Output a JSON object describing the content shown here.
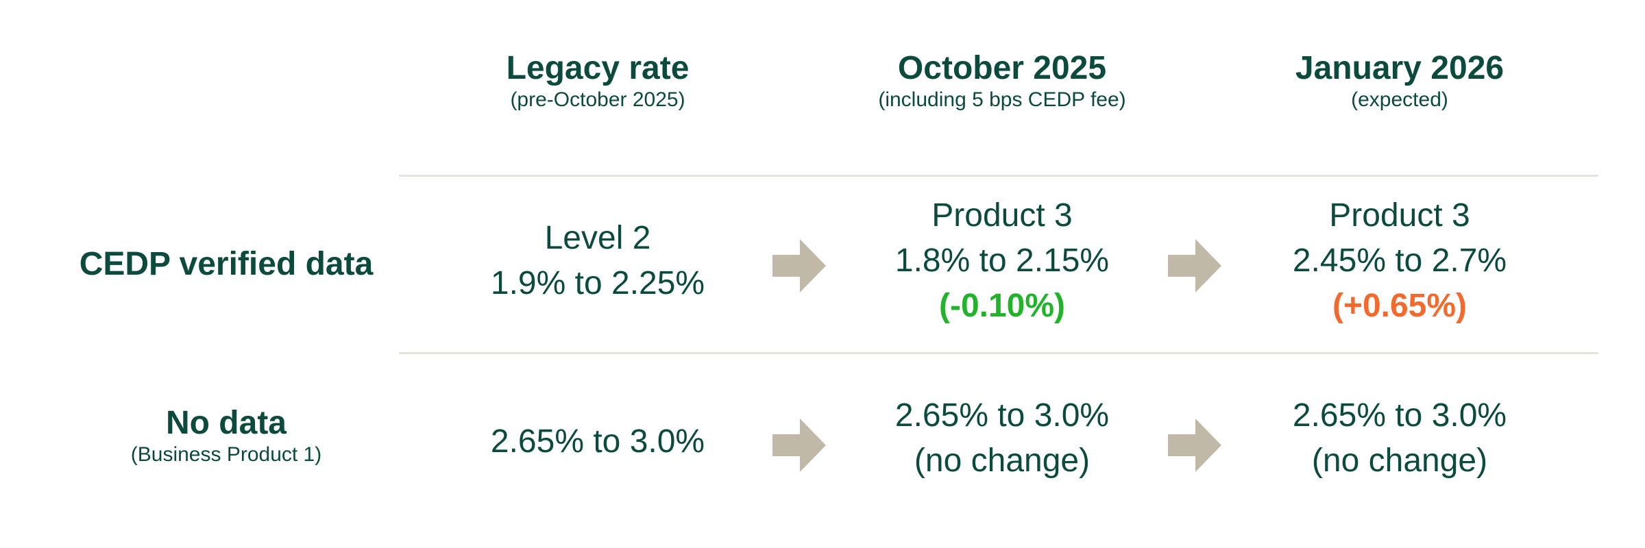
{
  "headers": [
    {
      "title": "Legacy rate",
      "subtitle": "(pre-October 2025)"
    },
    {
      "title": "October 2025",
      "subtitle": "(including 5 bps CEDP fee)"
    },
    {
      "title": "January 2026",
      "subtitle": "(expected)"
    }
  ],
  "rows": [
    {
      "title": "CEDP verified data",
      "subtitle": "",
      "legacy": {
        "line1": "Level 2",
        "line2": "1.9% to 2.25%"
      },
      "october": {
        "line1": "Product 3",
        "line2": "1.8% to 2.15%",
        "change": "(-0.10%)"
      },
      "january": {
        "line1": "Product 3",
        "line2": "2.45% to 2.7%",
        "change": "(+0.65%)"
      }
    },
    {
      "title": "No data",
      "subtitle": "(Business Product 1)",
      "legacy": {
        "line1": "2.65% to 3.0%"
      },
      "october": {
        "line1": "2.65% to 3.0%",
        "line2": "(no change)"
      },
      "january": {
        "line1": "2.65% to 3.0%",
        "line2": "(no change)"
      }
    }
  ],
  "colors": {
    "text": "#0b4a3c",
    "decrease": "#22b32a",
    "increase": "#f26a2e",
    "arrow": "#c2b8a7",
    "rule": "#e5e3dc"
  },
  "icons": {
    "arrow": "arrow-right-icon"
  }
}
